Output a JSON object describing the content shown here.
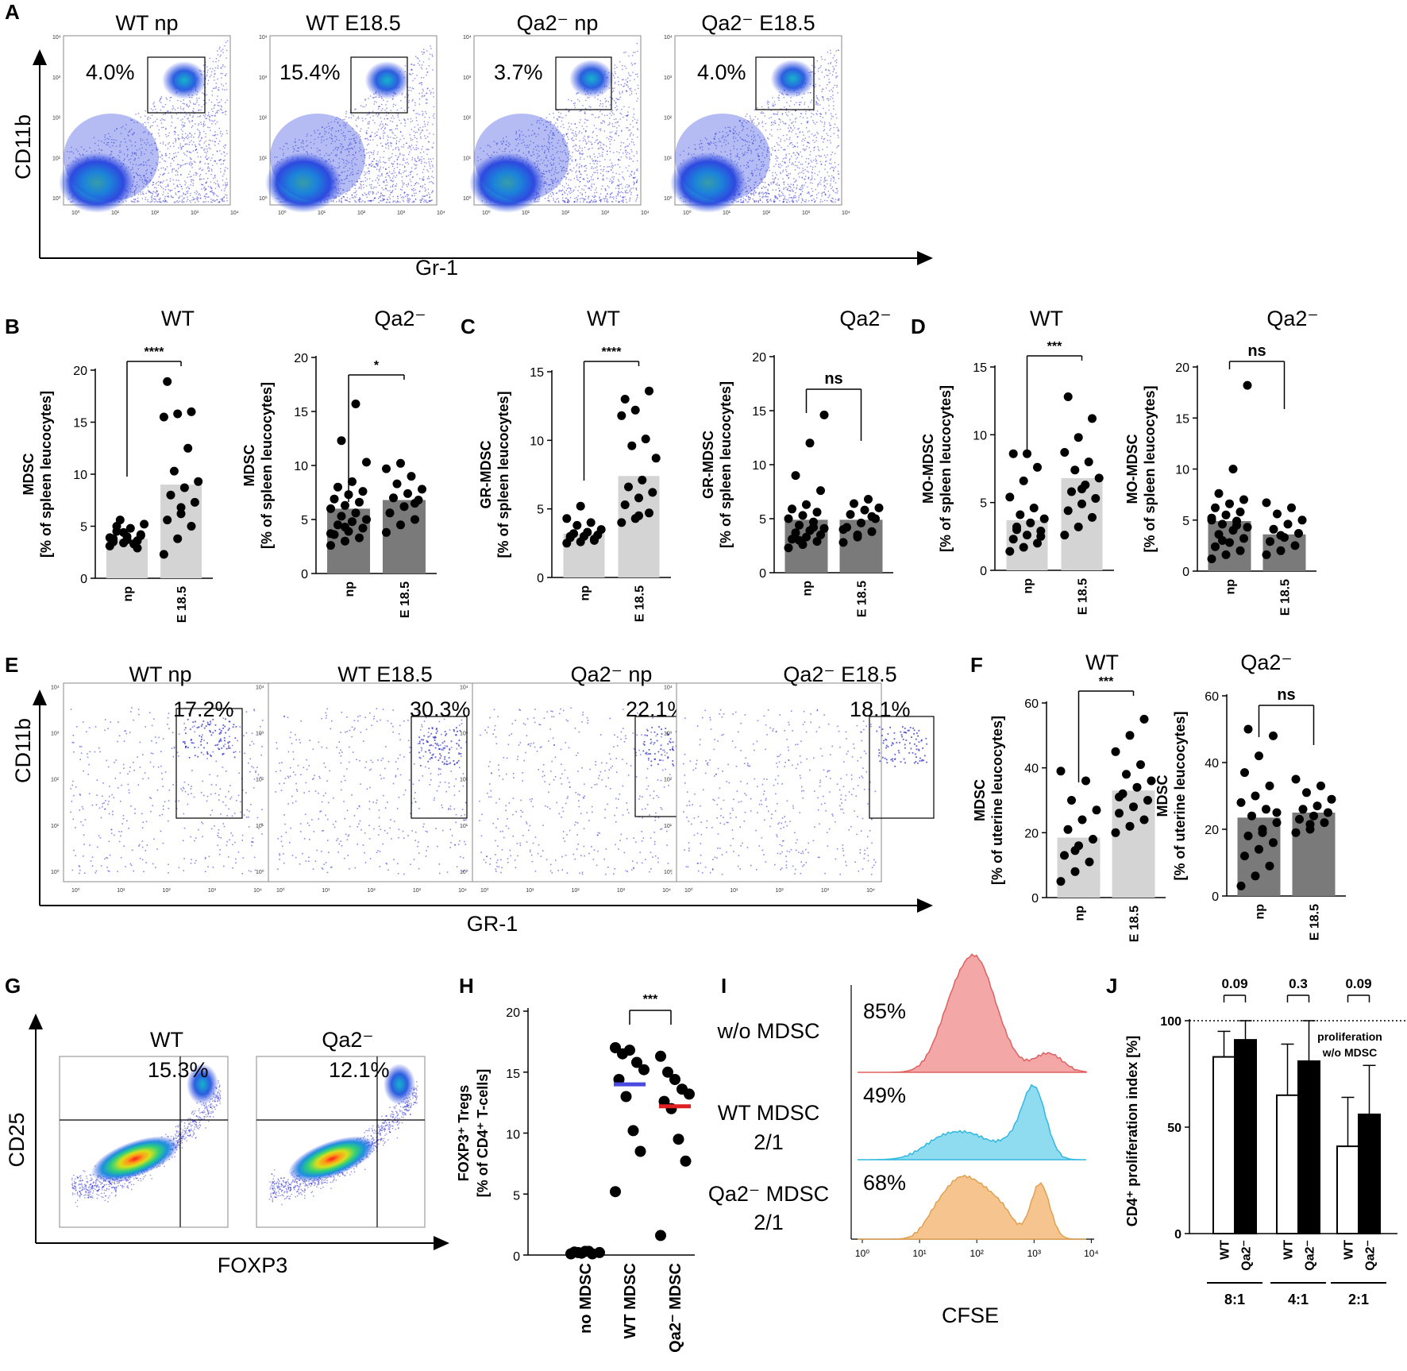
{
  "figure": {
    "panel_labels": [
      "A",
      "B",
      "C",
      "D",
      "E",
      "F",
      "G",
      "H",
      "I",
      "J"
    ],
    "colors": {
      "light_bar": "#d4d4d4",
      "dark_bar": "#7a7a7a",
      "point": "#000000",
      "blue_median": "#4a4ae0",
      "red_median": "#e02020",
      "hist_red": "#f4a7a7",
      "hist_cyan": "#8fdcf0",
      "hist_orange": "#f6c58f"
    }
  },
  "chart_data": [
    {
      "id": "A",
      "type": "scatter",
      "kind": "flow-cytometry-density",
      "xlabel": "Gr-1",
      "ylabel": "CD11b",
      "log_ticks": [
        "10⁰",
        "10¹",
        "10²",
        "10³",
        "10⁴"
      ],
      "plots": [
        {
          "title": "WT np",
          "title_html": "WT np",
          "gate_pct": "4.0%"
        },
        {
          "title": "WT E18.5",
          "gate_pct": "15.4%"
        },
        {
          "title": "Qa2⁻ np",
          "gate_pct": "3.7%"
        },
        {
          "title": "Qa2⁻ E18.5",
          "gate_pct": "4.0%"
        }
      ]
    },
    {
      "id": "B",
      "type": "bar",
      "ylabel_line1": "MDSC",
      "ylabel_line2": "[% of spleen leucocytes]",
      "categories": [
        "np",
        "E 18.5"
      ],
      "plots": [
        {
          "title": "WT",
          "ylim": [
            0,
            20
          ],
          "yticks": [
            "0",
            "5",
            "10",
            "15",
            "20"
          ],
          "bars": [
            3.8,
            9.0
          ],
          "sig": "****",
          "bar_style": "light",
          "points": [
            [
              3.1,
              3.4,
              3.6,
              3.8,
              4.0,
              4.2,
              4.5,
              4.8,
              5.2,
              5.6,
              3.3,
              3.9,
              4.4,
              2.9,
              3.5,
              3.7,
              4.1,
              5.0
            ],
            [
              2.3,
              3.8,
              5.0,
              5.6,
              6.2,
              7.3,
              8.0,
              8.7,
              9.3,
              10.3,
              12.5,
              15.5,
              15.8,
              16.0,
              18.9,
              6.8
            ]
          ]
        },
        {
          "title": "Qa2⁻",
          "ylim": [
            0,
            20
          ],
          "yticks": [
            "0",
            "5",
            "10",
            "15",
            "20"
          ],
          "bars": [
            6.0,
            6.8
          ],
          "sig": "*",
          "bar_style": "dark",
          "points": [
            [
              2.6,
              3.0,
              3.3,
              3.6,
              3.9,
              4.2,
              4.5,
              4.8,
              5.0,
              5.3,
              5.6,
              6.0,
              6.3,
              6.6,
              6.9,
              7.3,
              7.6,
              8.0,
              8.5,
              10.3,
              12.3,
              15.7,
              3.7,
              4.3
            ],
            [
              3.8,
              4.5,
              5.0,
              5.6,
              6.2,
              6.8,
              7.0,
              7.4,
              7.8,
              8.3,
              9.0,
              9.7,
              10.2,
              6.5
            ]
          ]
        }
      ]
    },
    {
      "id": "C",
      "type": "bar",
      "ylabel_line1": "GR-MDSC",
      "ylabel_line2": "[% of spleen leucocytes]",
      "categories": [
        "np",
        "E 18.5"
      ],
      "plots": [
        {
          "title": "WT",
          "ylim": [
            0,
            15
          ],
          "yticks": [
            "0",
            "5",
            "10",
            "15"
          ],
          "bars": [
            3.2,
            7.4
          ],
          "sig": "****",
          "bar_style": "light",
          "points": [
            [
              2.5,
              2.6,
              2.8,
              2.9,
              3.0,
              3.1,
              3.2,
              3.3,
              3.5,
              3.8,
              4.0,
              4.3,
              5.2,
              2.7,
              3.0
            ],
            [
              4.0,
              4.3,
              4.7,
              5.3,
              5.8,
              6.2,
              6.6,
              7.1,
              8.7,
              9.6,
              10.1,
              11.8,
              12.2,
              13.6,
              13.0,
              4.5
            ]
          ]
        },
        {
          "title": "Qa2⁻",
          "ylim": [
            0,
            20
          ],
          "yticks": [
            "0",
            "5",
            "10",
            "15",
            "20"
          ],
          "bars": [
            4.9,
            4.9
          ],
          "sig": "ns",
          "bar_style": "dark",
          "points": [
            [
              2.3,
              2.6,
              2.9,
              3.1,
              3.3,
              3.5,
              3.7,
              3.9,
              4.1,
              4.4,
              4.7,
              5.0,
              5.3,
              5.6,
              5.9,
              6.3,
              7.6,
              9.0,
              12.0,
              14.6,
              3.0,
              4.2
            ],
            [
              2.8,
              3.3,
              3.8,
              4.2,
              4.6,
              5.0,
              5.4,
              5.8,
              6.0,
              6.4,
              6.8,
              4.0,
              3.5,
              5.2
            ]
          ]
        }
      ]
    },
    {
      "id": "D",
      "type": "bar",
      "ylabel_line1": "MO-MDSC",
      "ylabel_line2": "[% of spleen leucocytes]",
      "categories": [
        "np",
        "E 18.5"
      ],
      "plots": [
        {
          "title": "WT",
          "ylim": [
            0,
            15
          ],
          "yticks": [
            "0",
            "5",
            "10",
            "15"
          ],
          "bars": [
            3.7,
            6.8
          ],
          "sig": "***",
          "bar_style": "light",
          "points": [
            [
              1.4,
              1.7,
              2.0,
              2.3,
              2.6,
              2.9,
              3.2,
              3.5,
              3.8,
              4.1,
              4.6,
              5.4,
              6.6,
              7.6,
              8.6,
              8.6,
              2.5,
              3.0
            ],
            [
              2.6,
              3.2,
              3.9,
              4.4,
              4.9,
              5.3,
              5.8,
              6.3,
              6.8,
              7.4,
              8.0,
              8.7,
              9.8,
              11.2,
              12.8,
              6.0
            ]
          ]
        },
        {
          "title": "Qa2⁻",
          "ylim": [
            0,
            20
          ],
          "yticks": [
            "0",
            "5",
            "10",
            "15",
            "20"
          ],
          "bars": [
            4.9,
            3.6
          ],
          "sig": "ns",
          "bar_style": "dark",
          "points": [
            [
              1.2,
              1.6,
              2.0,
              2.4,
              2.8,
              3.2,
              3.6,
              4.0,
              4.3,
              4.6,
              4.9,
              5.2,
              5.5,
              5.8,
              6.2,
              6.6,
              7.0,
              7.6,
              10.0,
              18.2,
              3.0,
              4.5,
              5.0
            ],
            [
              1.6,
              2.0,
              2.5,
              2.9,
              3.3,
              3.7,
              4.1,
              4.6,
              5.0,
              5.6,
              6.2,
              6.7,
              3.5
            ]
          ]
        }
      ]
    },
    {
      "id": "E",
      "type": "scatter",
      "kind": "flow-cytometry-dot",
      "xlabel": "GR-1",
      "ylabel": "CD11b",
      "log_ticks": [
        "10⁰",
        "10¹",
        "10²",
        "10³",
        "10⁴"
      ],
      "plots": [
        {
          "title": "WT np",
          "gate_pct": "17.2%"
        },
        {
          "title": "WT E18.5",
          "gate_pct": "30.3%"
        },
        {
          "title": "Qa2⁻ np",
          "gate_pct": "22.1%"
        },
        {
          "title": "Qa2⁻ E18.5",
          "gate_pct": "18.1%"
        }
      ]
    },
    {
      "id": "F",
      "type": "bar",
      "ylabel_line1": "MDSC",
      "ylabel_line2": "[% of uterine leucocytes]",
      "categories": [
        "np",
        "E 18.5"
      ],
      "plots": [
        {
          "title": "WT",
          "ylim": [
            0,
            60
          ],
          "yticks": [
            "0",
            "20",
            "40",
            "60"
          ],
          "bars": [
            18.5,
            33.0
          ],
          "sig": "***",
          "bar_style": "light",
          "points": [
            [
              5.0,
              8.0,
              11.0,
              13.0,
              16.0,
              18.0,
              21.0,
              24.0,
              27.0,
              30.0,
              36.0,
              39.0,
              14.5
            ],
            [
              20.0,
              22.0,
              24.0,
              26.0,
              28.0,
              30.0,
              32.0,
              34.0,
              36.0,
              38.0,
              41.0,
              45.0,
              50.0,
              55.0,
              31.0
            ]
          ]
        },
        {
          "title": "Qa2⁻",
          "ylim": [
            0,
            60
          ],
          "yticks": [
            "0",
            "20",
            "40",
            "60"
          ],
          "bars": [
            23.5,
            25.0
          ],
          "sig": "ns",
          "bar_style": "dark",
          "points": [
            [
              3.0,
              6.0,
              9.0,
              12.0,
              14.0,
              16.0,
              18.0,
              20.0,
              22.0,
              24.0,
              26.0,
              28.0,
              30.0,
              33.0,
              37.0,
              42.0,
              48.0,
              50.0,
              19.0,
              25.0
            ],
            [
              19.0,
              20.0,
              22.0,
              23.0,
              24.0,
              25.0,
              26.0,
              27.0,
              29.0,
              31.0,
              33.0,
              35.0,
              21.5
            ]
          ]
        }
      ]
    },
    {
      "id": "G",
      "type": "scatter",
      "kind": "flow-cytometry-quadrant",
      "xlabel": "FOXP3",
      "ylabel": "CD25",
      "plots": [
        {
          "title": "WT",
          "gate_pct": "15.3%"
        },
        {
          "title": "Qa2⁻",
          "gate_pct": "12.1%"
        }
      ]
    },
    {
      "id": "H",
      "type": "scatter",
      "ylabel_line1": "FOXP3⁺ Tregs",
      "ylabel_line2": "[% of CD4⁺ T-cells]",
      "ylim": [
        0,
        20
      ],
      "yticks": [
        "0",
        "5",
        "10",
        "15",
        "20"
      ],
      "categories": [
        "no MDSC",
        "WT MDSC",
        "Qa2⁻ MDSC"
      ],
      "sig": "***",
      "medians": [
        null,
        14.0,
        12.2
      ],
      "points": [
        [
          0.1,
          0.2,
          0.3,
          0.1,
          0.2,
          0.25,
          0.15,
          0.3
        ],
        [
          17.0,
          16.5,
          16.8,
          15.8,
          15.2,
          14.4,
          13.0,
          10.2,
          8.5,
          5.2
        ],
        [
          16.3,
          15.0,
          14.4,
          13.6,
          13.2,
          12.6,
          12.0,
          9.5,
          7.7,
          1.6
        ]
      ]
    },
    {
      "id": "I",
      "type": "area",
      "kind": "histogram",
      "xlabel": "CFSE",
      "log_ticks": [
        "10⁰",
        "10¹",
        "10²",
        "10³",
        "10⁴"
      ],
      "rows": [
        {
          "label_line1": "w/o MDSC",
          "label_line2": "",
          "pct": "85%"
        },
        {
          "label_line1": "WT MDSC",
          "label_line2": "2/1",
          "pct": "49%"
        },
        {
          "label_line1": "Qa2⁻ MDSC",
          "label_line2": "2/1",
          "pct": "68%"
        }
      ]
    },
    {
      "id": "J",
      "type": "bar",
      "ylabel": "CD4⁺ proliferation index [%]",
      "ylim": [
        0,
        100
      ],
      "yticks": [
        "0",
        "50",
        "100"
      ],
      "series": [
        {
          "name": "WT",
          "values": [
            83,
            65,
            41
          ]
        },
        {
          "name": "Qa2⁻",
          "values": [
            91,
            81,
            56
          ]
        }
      ],
      "errors": [
        [
          12,
          24,
          23
        ],
        [
          9,
          19,
          23
        ]
      ],
      "groups": [
        "8:1",
        "4:1",
        "2:1"
      ],
      "pvalues": [
        "0.09",
        "0.3",
        "0.09"
      ],
      "reference_line": 100,
      "reference_label_line1": "proliferation",
      "reference_label_line2": "w/o MDSC"
    }
  ]
}
